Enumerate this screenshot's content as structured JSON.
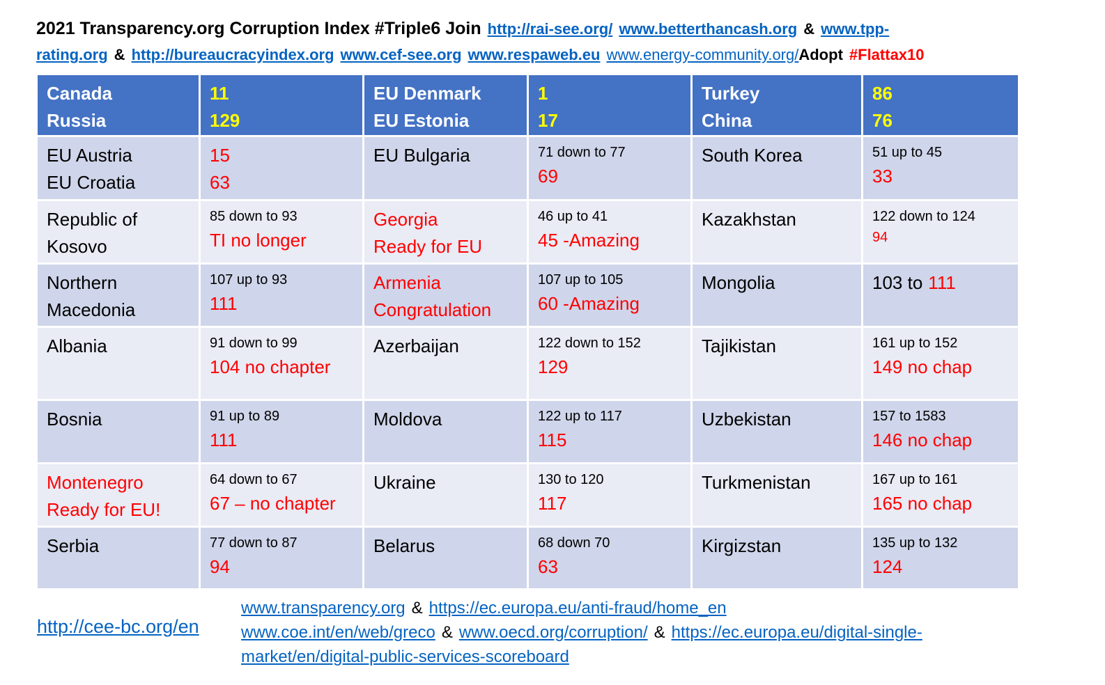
{
  "title": {
    "lines": [
      [
        {
          "text": "2021 Transparency.org Corruption Index #Triple6 Join",
          "color": "#000000",
          "bold": true
        },
        {
          "text": "http://rai-see.org/",
          "color": "#0563c1",
          "bold": true,
          "link": true
        },
        {
          "text": "www.betterthancash.org",
          "color": "#0563c1",
          "bold": true,
          "link": true
        },
        {
          "text": "&",
          "color": "#000000",
          "bold": true
        },
        {
          "text": "www.tpp-",
          "color": "#0563c1",
          "bold": true,
          "link": true
        }
      ],
      [
        {
          "text": "rating.org",
          "color": "#0563c1",
          "bold": true,
          "link": true
        },
        {
          "text": "&",
          "color": "#000000",
          "bold": true
        },
        {
          "text": "http://bureaucracyindex.org",
          "color": "#0563c1",
          "bold": true,
          "link": true
        },
        {
          "text": "www.cef-see.org",
          "color": "#0563c1",
          "bold": true,
          "link": true
        },
        {
          "text": "www.respaweb.eu",
          "color": "#0563c1",
          "bold": true,
          "link": true
        },
        {
          "text": "www.energy-community.org/",
          "color": "#0563c1",
          "link": true,
          "tight": true
        },
        {
          "text": "Adopt",
          "color": "#000000",
          "bold": true
        },
        {
          "text": "#Flattax10",
          "color": "#ff0000",
          "bold": true
        }
      ]
    ]
  },
  "table": {
    "header_color": "#4472c4",
    "row_colors": [
      "#cfd5ea",
      "#e9ebf5"
    ],
    "rows": [
      [
        {
          "lines": [
            {
              "text": "Canada",
              "color": "#ffffff"
            },
            {
              "text": "Russia",
              "color": "#ffffff"
            }
          ]
        },
        {
          "lines": [
            {
              "text": "11",
              "color": "#ffff00"
            },
            {
              "text": "129",
              "color": "#ffff00"
            }
          ]
        },
        {
          "lines": [
            {
              "text": "EU Denmark",
              "color": "#ffffff"
            },
            {
              "text": "EU Estonia",
              "color": "#ffffff"
            }
          ]
        },
        {
          "lines": [
            {
              "text": "1",
              "color": "#ffff00"
            },
            {
              "text": "17",
              "color": "#ffff00"
            }
          ]
        },
        {
          "lines": [
            {
              "text": "Turkey",
              "color": "#ffffff"
            },
            {
              "text": "China",
              "color": "#ffffff"
            }
          ]
        },
        {
          "lines": [
            {
              "text": "86",
              "color": "#ffff00"
            },
            {
              "text": "76",
              "color": "#ffff00"
            }
          ]
        }
      ],
      [
        {
          "lines": [
            {
              "text": "EU Austria"
            },
            {
              "text": "EU Croatia"
            }
          ]
        },
        {
          "lines": [
            {
              "text": "15",
              "color": "#ff0000"
            },
            {
              "text": "63",
              "color": "#ff0000"
            }
          ]
        },
        {
          "lines": [
            {
              "text": "EU Bulgaria"
            }
          ]
        },
        {
          "lines": [
            {
              "text": "71 down to 77",
              "small": true
            },
            {
              "text": "69",
              "color": "#ff0000"
            }
          ]
        },
        {
          "lines": [
            {
              "text": "South Korea"
            }
          ]
        },
        {
          "lines": [
            {
              "text": "51 up to 45",
              "small": true
            },
            {
              "text": "33",
              "color": "#ff0000"
            }
          ]
        }
      ],
      [
        {
          "lines": [
            {
              "text": "Republic of"
            },
            {
              "text": "Kosovo"
            }
          ]
        },
        {
          "lines": [
            {
              "text": "85 down to 93",
              "small": true
            },
            {
              "text": "TI no longer",
              "color": "#ff0000"
            }
          ]
        },
        {
          "lines": [
            {
              "text": "Georgia",
              "color": "#ff0000"
            },
            {
              "text": "Ready for EU",
              "color": "#ff0000"
            }
          ]
        },
        {
          "lines": [
            {
              "text": "46 up to 41",
              "small": true
            },
            {
              "text": "45 -Amazing",
              "color": "#ff0000"
            }
          ]
        },
        {
          "lines": [
            {
              "text": "Kazakhstan"
            }
          ]
        },
        {
          "lines": [
            {
              "text": "122 down to 124",
              "small": true
            },
            {
              "text": "94",
              "color": "#ff0000",
              "small": true
            }
          ]
        }
      ],
      [
        {
          "lines": [
            {
              "text": "Northern"
            },
            {
              "text": "Macedonia"
            }
          ]
        },
        {
          "lines": [
            {
              "text": "107 up to 93",
              "small": true
            },
            {
              "text": "111",
              "color": "#ff0000"
            }
          ]
        },
        {
          "lines": [
            {
              "text": "Armenia",
              "color": "#ff0000"
            },
            {
              "text": "Congratulation",
              "color": "#ff0000"
            }
          ]
        },
        {
          "lines": [
            {
              "text": "107 up to 105",
              "small": true
            },
            {
              "text": "60 -Amazing",
              "color": "#ff0000"
            }
          ]
        },
        {
          "lines": [
            {
              "text": "Mongolia"
            }
          ]
        },
        {
          "lines": [
            {
              "parts": [
                {
                  "text": "103 to"
                },
                {
                  "text": "111",
                  "color": "#ff0000"
                }
              ]
            }
          ]
        }
      ],
      [
        {
          "lines": [
            {
              "text": "Albania"
            }
          ]
        },
        {
          "lines": [
            {
              "text": "91 down to 99",
              "small": true
            },
            {
              "text": "104 no chapter",
              "color": "#ff0000"
            }
          ]
        },
        {
          "lines": [
            {
              "text": "Azerbaijan"
            }
          ]
        },
        {
          "lines": [
            {
              "text": "122 down to 152",
              "small": true
            },
            {
              "text": "129",
              "color": "#ff0000"
            }
          ]
        },
        {
          "lines": [
            {
              "text": "Tajikistan"
            }
          ]
        },
        {
          "lines": [
            {
              "text": "161 up to 152",
              "small": true
            },
            {
              "text": "149 no chap",
              "color": "#ff0000"
            }
          ]
        }
      ],
      [
        {
          "lines": [
            {
              "text": "Bosnia"
            }
          ]
        },
        {
          "lines": [
            {
              "text": "91 up to 89",
              "small": true
            },
            {
              "text": "111",
              "color": "#ff0000"
            }
          ]
        },
        {
          "lines": [
            {
              "text": "Moldova"
            }
          ]
        },
        {
          "lines": [
            {
              "text": "122 up to 117",
              "small": true
            },
            {
              "text": "115",
              "color": "#ff0000"
            }
          ]
        },
        {
          "lines": [
            {
              "text": "Uzbekistan"
            }
          ]
        },
        {
          "lines": [
            {
              "text": "157 to 1583",
              "small": true
            },
            {
              "text": "146 no chap",
              "color": "#ff0000"
            }
          ]
        }
      ],
      [
        {
          "lines": [
            {
              "text": "Montenegro",
              "color": "#ff0000"
            },
            {
              "text": "Ready for EU!",
              "color": "#ff0000"
            }
          ]
        },
        {
          "lines": [
            {
              "text": "64 down to 67",
              "small": true
            },
            {
              "text": "67 – no chapter",
              "color": "#ff0000"
            }
          ]
        },
        {
          "lines": [
            {
              "text": "Ukraine"
            }
          ]
        },
        {
          "lines": [
            {
              "text": "130 to 120",
              "small": true
            },
            {
              "text": "117",
              "color": "#ff0000"
            }
          ]
        },
        {
          "lines": [
            {
              "text": "Turkmenistan"
            }
          ]
        },
        {
          "lines": [
            {
              "text": "167 up to 161",
              "small": true
            },
            {
              "text": "165 no chap",
              "color": "#ff0000"
            }
          ]
        }
      ],
      [
        {
          "lines": [
            {
              "text": "Serbia"
            }
          ]
        },
        {
          "lines": [
            {
              "text": "77 down to 87",
              "small": true
            },
            {
              "text": "94",
              "color": "#ff0000"
            }
          ]
        },
        {
          "lines": [
            {
              "text": "Belarus"
            }
          ]
        },
        {
          "lines": [
            {
              "text": "68 down 70",
              "small": true
            },
            {
              "text": "63",
              "color": "#ff0000"
            }
          ]
        },
        {
          "lines": [
            {
              "text": "Kirgizstan"
            }
          ]
        },
        {
          "lines": [
            {
              "text": "135 up to 132",
              "small": true
            },
            {
              "text": "124",
              "color": "#ff0000"
            }
          ]
        }
      ]
    ]
  },
  "footer": {
    "left": {
      "text": "http://cee-bc.org/en",
      "color": "#0563c1",
      "link": true
    },
    "right": {
      "lines": [
        [
          {
            "text": "www.transparency.org",
            "color": "#0563c1",
            "link": true
          },
          {
            "text": "&",
            "color": "#000000"
          },
          {
            "text": "https://ec.europa.eu/anti-fraud/home_en",
            "color": "#0563c1",
            "link": true
          }
        ],
        [
          {
            "text": "www.coe.int/en/web/greco",
            "color": "#0563c1",
            "link": true
          },
          {
            "text": "&",
            "color": "#000000"
          },
          {
            "text": "www.oecd.org/corruption/",
            "color": "#0563c1",
            "link": true
          },
          {
            "text": "&",
            "color": "#000000"
          },
          {
            "text": "https://ec.europa.eu/digital-single-",
            "color": "#0563c1",
            "link": true
          }
        ],
        [
          {
            "text": "market/en/digital-public-services-scoreboard",
            "color": "#0563c1",
            "link": true
          }
        ]
      ]
    }
  }
}
